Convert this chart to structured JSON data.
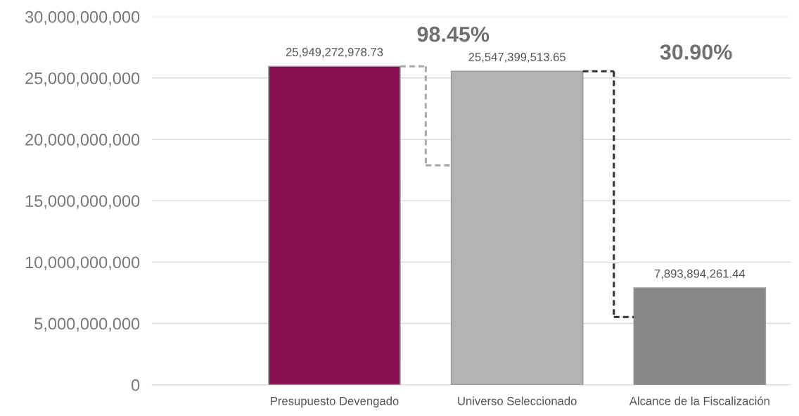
{
  "chart_data": {
    "type": "bar",
    "categories": [
      "Presupuesto Devengado",
      "Universo Seleccionado",
      "Alcance de la Fiscalización"
    ],
    "values": [
      25949272978.73,
      25547399513.65,
      7893894261.44
    ],
    "colors": [
      "#8a0f52",
      "#b3b3b3",
      "#878787"
    ],
    "value_labels": [
      "25,949,272,978.73",
      "25,547,399,513.65",
      "7,893,894,261.44"
    ],
    "annotations": [
      "98.45%",
      "30.90%"
    ],
    "ylim": [
      0,
      30000000000
    ],
    "yticks": [
      {
        "value": 0,
        "label": "0"
      },
      {
        "value": 5000000000,
        "label": "5,000,000,000"
      },
      {
        "value": 10000000000,
        "label": "10,000,000,000"
      },
      {
        "value": 15000000000,
        "label": "15,000,000,000"
      },
      {
        "value": 20000000000,
        "label": "20,000,000,000"
      },
      {
        "value": 25000000000,
        "label": "25,000,000,000"
      },
      {
        "value": 30000000000,
        "label": "30,000,000,000"
      }
    ],
    "grid": "y",
    "legend": false
  }
}
